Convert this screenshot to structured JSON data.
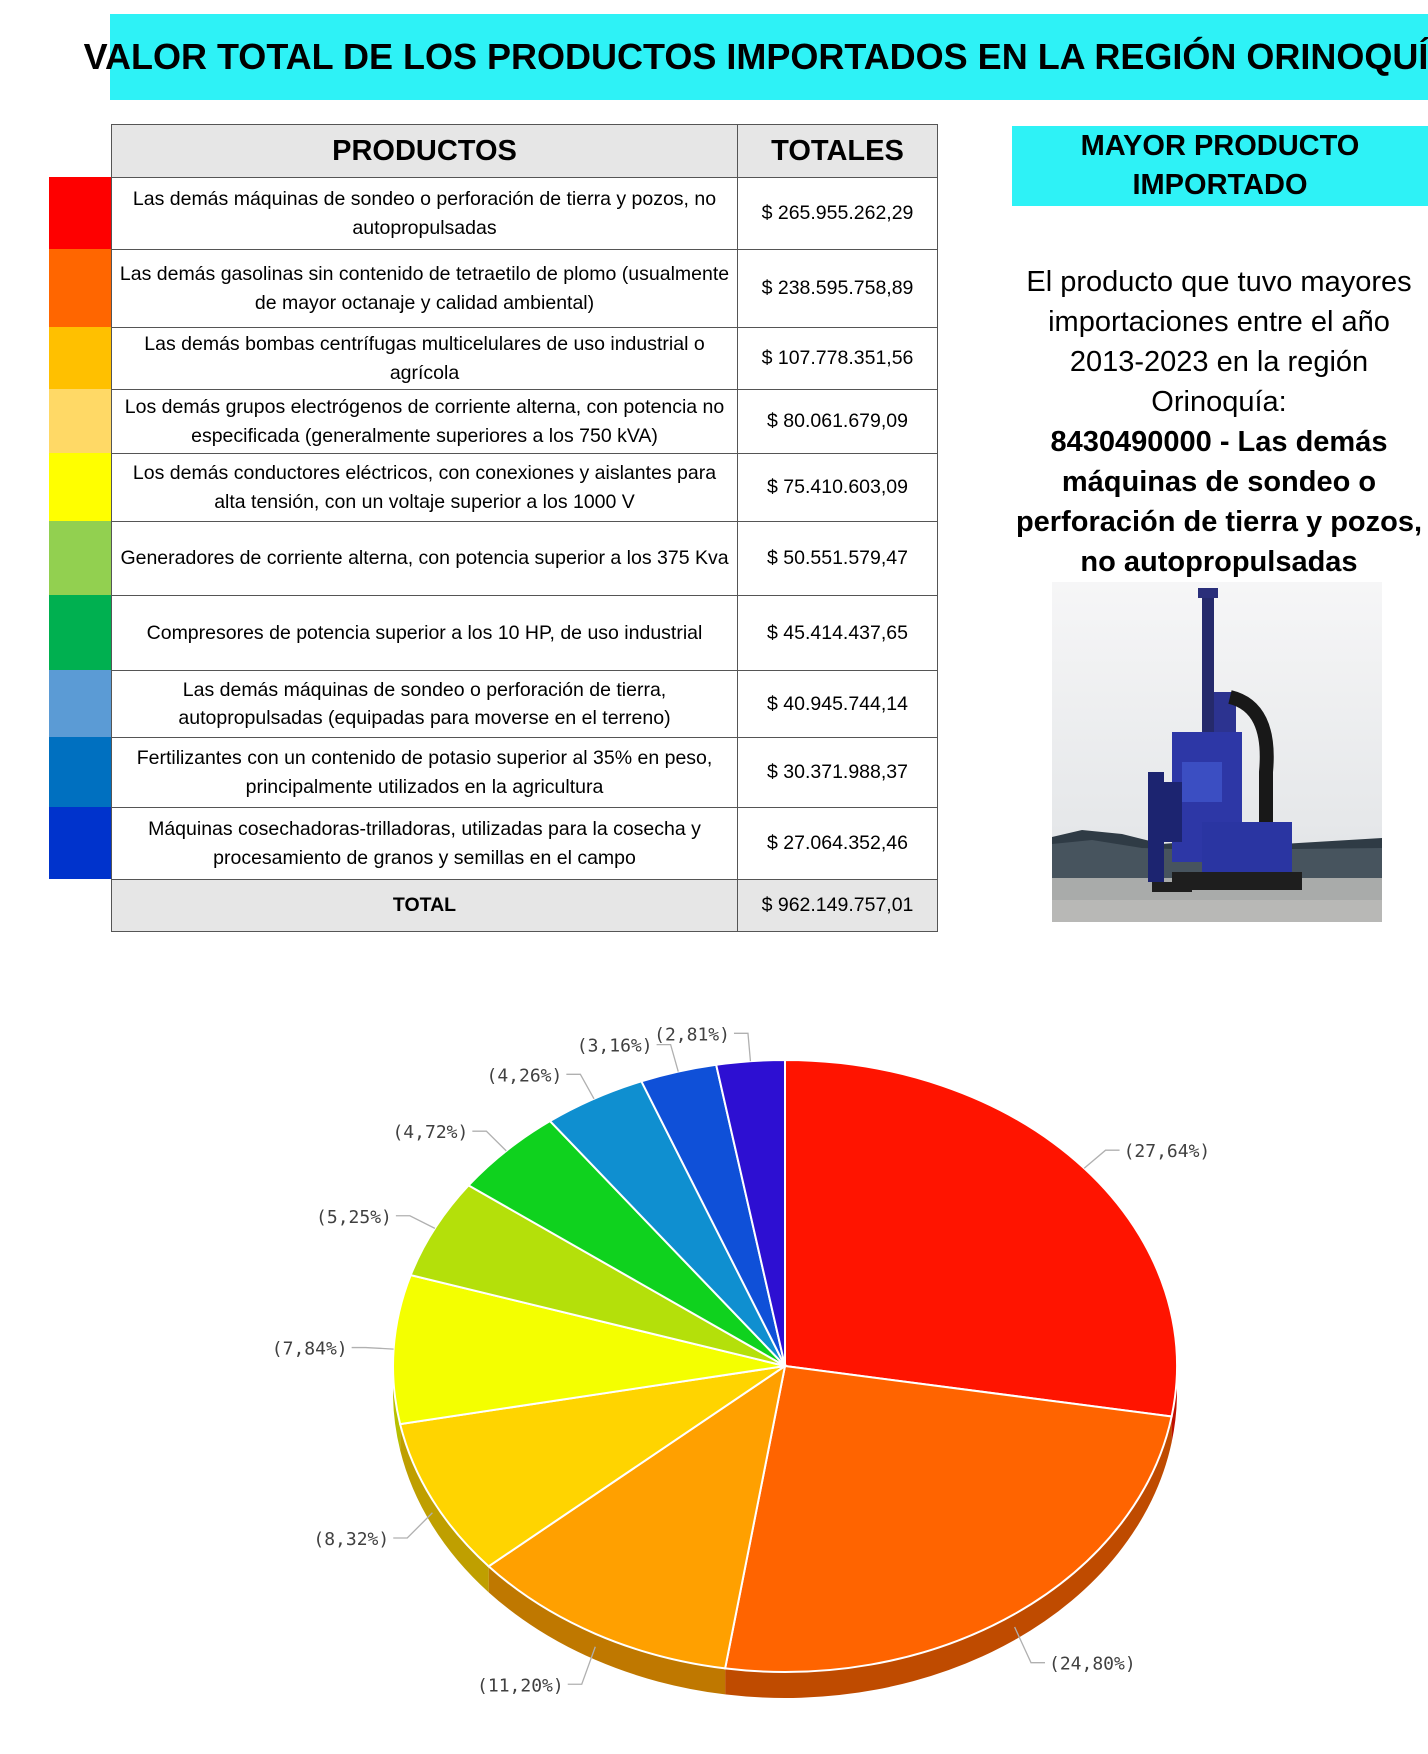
{
  "title": "VALOR TOTAL DE LOS PRODUCTOS IMPORTADOS EN LA REGIÓN ORINOQUÍA",
  "table": {
    "header_product": "PRODUCTOS",
    "header_total": "TOTALES",
    "rows": [
      {
        "product": "Las demás máquinas de sondeo o perforación de tierra y pozos, no autopropulsadas",
        "total": "$ 265.955.262,29",
        "color": "#fe0000"
      },
      {
        "product": "Las demás gasolinas sin contenido de tetraetilo de plomo (usualmente de mayor octanaje y calidad ambiental)",
        "total": "$ 238.595.758,89",
        "color": "#ff6600"
      },
      {
        "product": "Las demás bombas centrífugas multicelulares de uso industrial o agrícola",
        "total": "$ 107.778.351,56",
        "color": "#ffc000"
      },
      {
        "product": "Los demás grupos electrógenos de corriente alterna, con potencia no especificada (generalmente superiores a los 750 kVA)",
        "total": "$ 80.061.679,09",
        "color": "#ffd966"
      },
      {
        "product": "Los demás conductores eléctricos, con conexiones y aislantes para alta tensión, con un voltaje superior a los 1000 V",
        "total": "$ 75.410.603,09",
        "color": "#ffff00"
      },
      {
        "product": "Generadores de corriente alterna, con potencia superior a los 375 Kva",
        "total": "$ 50.551.579,47",
        "color": "#92d050"
      },
      {
        "product": "Compresores de potencia superior a los 10 HP, de uso industrial",
        "total": "$ 45.414.437,65",
        "color": "#00b050"
      },
      {
        "product": "Las demás máquinas de sondeo o perforación de tierra, autopropulsadas (equipadas para moverse en el terreno)",
        "total": "$ 40.945.744,14",
        "color": "#5b9bd5"
      },
      {
        "product": "Fertilizantes con un contenido de potasio superior al 35% en peso, principalmente utilizados en la agricultura",
        "total": "$ 30.371.988,37",
        "color": "#0070c0"
      },
      {
        "product": "Máquinas cosechadoras-trilladoras, utilizadas para la cosecha y procesamiento de granos y semillas en el campo",
        "total": "$ 27.064.352,46",
        "color": "#0033cc"
      }
    ],
    "total_label": "TOTAL",
    "total_value": "$ 962.149.757,01"
  },
  "side": {
    "heading": "MAYOR PRODUCTO IMPORTADO",
    "text": "El producto que tuvo mayores importaciones entre el año 2013-2023 en la región Orinoquía:",
    "highlight": "8430490000 - Las demás máquinas de sondeo o perforación de tierra y pozos, no autopropulsadas",
    "photo_icon": "drilling-rig-photo"
  },
  "chart_data": {
    "type": "pie",
    "title": "",
    "slices": [
      {
        "value": 27.64,
        "label": "(27,64%)",
        "color": "#ff1400"
      },
      {
        "value": 24.8,
        "label": "(24,80%)",
        "color": "#ff6400"
      },
      {
        "value": 11.2,
        "label": "(11,20%)",
        "color": "#ffa000"
      },
      {
        "value": 8.32,
        "label": "(8,32%)",
        "color": "#ffd400"
      },
      {
        "value": 7.84,
        "label": "(7,84%)",
        "color": "#f4ff00"
      },
      {
        "value": 5.25,
        "label": "(5,25%)",
        "color": "#b4e00a"
      },
      {
        "value": 4.72,
        "label": "(4,72%)",
        "color": "#0fd21e"
      },
      {
        "value": 4.26,
        "label": "(4,26%)",
        "color": "#0f8fd0"
      },
      {
        "value": 3.16,
        "label": "(3,16%)",
        "color": "#0f50d8"
      },
      {
        "value": 2.81,
        "label": "(2,81%)",
        "color": "#2d0fd2"
      }
    ]
  }
}
